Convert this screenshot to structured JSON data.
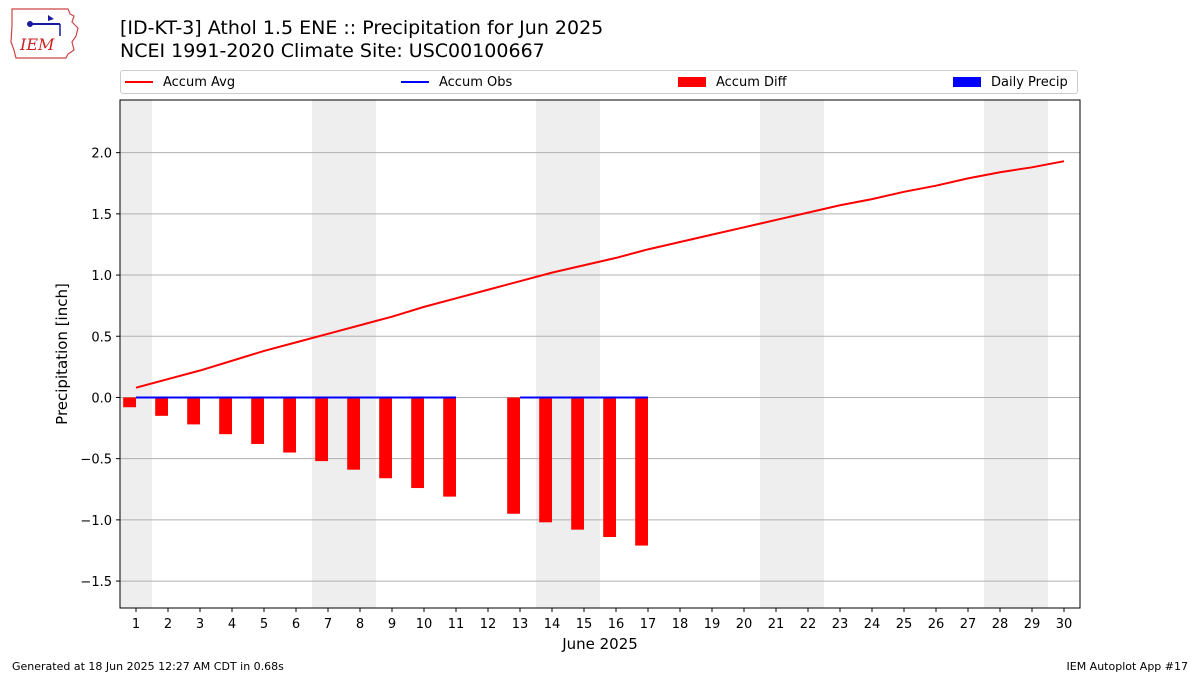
{
  "header": {
    "logo_text": "IEM",
    "title_line1": "[ID-KT-3] Athol 1.5 ENE :: Precipitation for Jun 2025",
    "title_line2": "NCEI 1991-2020 Climate Site: USC00100667"
  },
  "legend": {
    "items": [
      {
        "label": "Accum Avg",
        "kind": "line",
        "color": "#ff0000"
      },
      {
        "label": "Accum Obs",
        "kind": "line",
        "color": "#0000ff"
      },
      {
        "label": "Accum Diff",
        "kind": "patch",
        "color": "#ff0000"
      },
      {
        "label": "Daily Precip",
        "kind": "patch",
        "color": "#0000ff"
      }
    ]
  },
  "footer": {
    "left": "Generated at 18 Jun 2025 12:27 AM CDT in 0.68s",
    "right": "IEM Autoplot App #17"
  },
  "chart_data": {
    "type": "bar",
    "xlabel": "June 2025",
    "ylabel": "Precipitation [inch]",
    "xlim": [
      0.5,
      30.5
    ],
    "ylim": [
      -1.72,
      2.43
    ],
    "yticks": [
      -1.5,
      -1.0,
      -0.5,
      0.0,
      0.5,
      1.0,
      1.5,
      2.0
    ],
    "ytick_labels": [
      "−1.5",
      "−1.0",
      "−0.5",
      "0.0",
      "0.5",
      "1.0",
      "1.5",
      "2.0"
    ],
    "x": [
      1,
      2,
      3,
      4,
      5,
      6,
      7,
      8,
      9,
      10,
      11,
      12,
      13,
      14,
      15,
      16,
      17,
      18,
      19,
      20,
      21,
      22,
      23,
      24,
      25,
      26,
      27,
      28,
      29,
      30
    ],
    "grid": "horizontal",
    "weekend_shading": [
      [
        0.5,
        1.5
      ],
      [
        6.5,
        8.5
      ],
      [
        13.5,
        15.5
      ],
      [
        20.5,
        22.5
      ],
      [
        27.5,
        29.5
      ]
    ],
    "shade_color": "#eeeeee",
    "series": [
      {
        "name": "Accum Avg",
        "kind": "line",
        "color": "#ff0000",
        "x": [
          1,
          2,
          3,
          4,
          5,
          6,
          7,
          8,
          9,
          10,
          11,
          12,
          13,
          14,
          15,
          16,
          17,
          18,
          19,
          20,
          21,
          22,
          23,
          24,
          25,
          26,
          27,
          28,
          29,
          30
        ],
        "values": [
          0.08,
          0.15,
          0.22,
          0.3,
          0.38,
          0.45,
          0.52,
          0.59,
          0.66,
          0.74,
          0.81,
          0.88,
          0.95,
          1.02,
          1.08,
          1.14,
          1.21,
          1.27,
          1.33,
          1.39,
          1.45,
          1.51,
          1.57,
          1.62,
          1.68,
          1.73,
          1.79,
          1.84,
          1.88,
          1.93
        ]
      },
      {
        "name": "Accum Obs",
        "kind": "line",
        "color": "#0000ff",
        "segments": [
          {
            "x": [
              1,
              2,
              3,
              4,
              5,
              6,
              7,
              8,
              9,
              10,
              11
            ],
            "values": [
              0,
              0,
              0,
              0,
              0,
              0,
              0,
              0,
              0,
              0,
              0
            ]
          },
          {
            "x": [
              13,
              14,
              15,
              16,
              17
            ],
            "values": [
              0,
              0,
              0,
              0,
              0
            ]
          }
        ]
      },
      {
        "name": "Accum Diff",
        "kind": "bar",
        "color": "#ff0000",
        "x": [
          1,
          2,
          3,
          4,
          5,
          6,
          7,
          8,
          9,
          10,
          11,
          13,
          14,
          15,
          16,
          17
        ],
        "values": [
          -0.08,
          -0.15,
          -0.22,
          -0.3,
          -0.38,
          -0.45,
          -0.52,
          -0.59,
          -0.66,
          -0.74,
          -0.81,
          -0.95,
          -1.02,
          -1.08,
          -1.14,
          -1.21
        ]
      },
      {
        "name": "Daily Precip",
        "kind": "bar",
        "color": "#0000ff",
        "x": [],
        "values": []
      }
    ]
  }
}
